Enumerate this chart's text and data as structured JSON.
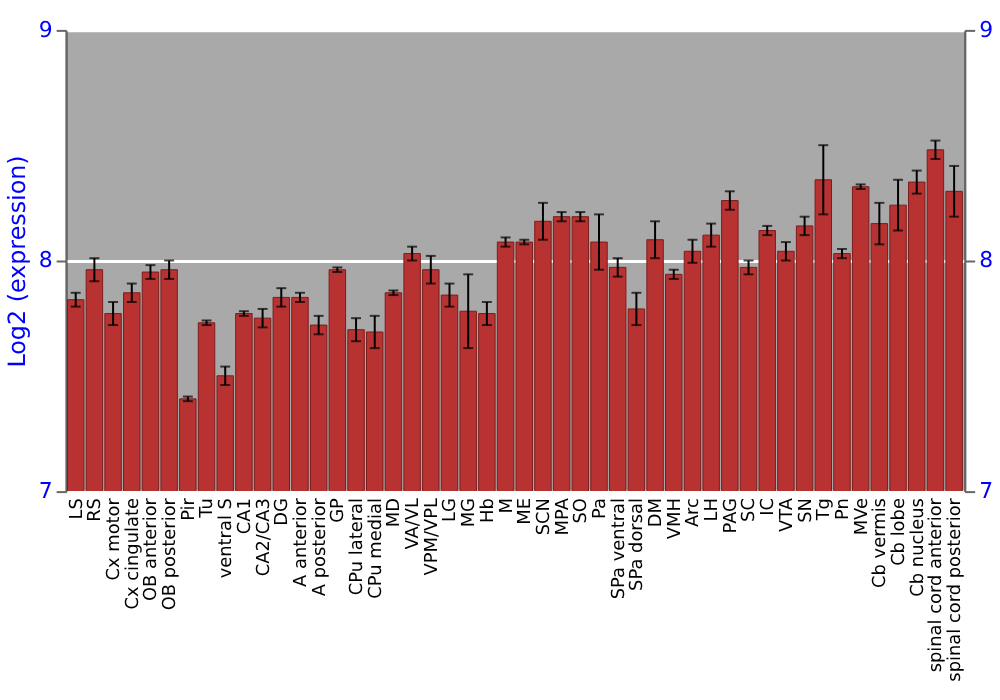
{
  "chart_data": {
    "type": "bar",
    "ylabel": "Log2 (expression)",
    "categories": [
      "LS",
      "RS",
      "Cx motor",
      "Cx cingulate",
      "OB anterior",
      "OB posterior",
      "Pir",
      "Tu",
      "ventral S",
      "CA1",
      "CA2/CA3",
      "DG",
      "A anterior",
      "A posterior",
      "GP",
      "CPu lateral",
      "CPu medial",
      "MD",
      "VA/VL",
      "VPM/VPL",
      "LG",
      "MG",
      "Hb",
      "M",
      "ME",
      "SCN",
      "MPA",
      "SO",
      "Pa",
      "SPa ventral",
      "SPa dorsal",
      "DM",
      "VMH",
      "Arc",
      "LH",
      "PAG",
      "SC",
      "IC",
      "VTA",
      "SN",
      "Tg",
      "Pn",
      "MVe",
      "Cb vermis",
      "Cb lobe",
      "Cb nucleus",
      "spinal cord anterior",
      "spinal cord posterior"
    ],
    "values": [
      7.83,
      7.96,
      7.77,
      7.86,
      7.95,
      7.96,
      7.4,
      7.73,
      7.5,
      7.77,
      7.75,
      7.84,
      7.84,
      7.72,
      7.96,
      7.7,
      7.69,
      7.86,
      8.03,
      7.96,
      7.85,
      7.78,
      7.77,
      8.08,
      8.08,
      8.17,
      8.19,
      8.19,
      8.08,
      7.97,
      7.79,
      8.09,
      7.94,
      8.04,
      8.11,
      8.26,
      7.97,
      8.13,
      8.04,
      8.15,
      8.35,
      8.03,
      8.32,
      8.16,
      8.24,
      8.34,
      8.48,
      8.3
    ],
    "errors": [
      0.03,
      0.05,
      0.05,
      0.04,
      0.03,
      0.04,
      0.01,
      0.01,
      0.04,
      0.01,
      0.04,
      0.04,
      0.02,
      0.04,
      0.01,
      0.05,
      0.07,
      0.01,
      0.03,
      0.06,
      0.05,
      0.16,
      0.05,
      0.02,
      0.01,
      0.08,
      0.02,
      0.02,
      0.12,
      0.04,
      0.07,
      0.08,
      0.02,
      0.05,
      0.05,
      0.04,
      0.03,
      0.02,
      0.04,
      0.04,
      0.15,
      0.02,
      0.01,
      0.09,
      0.11,
      0.05,
      0.04,
      0.11
    ],
    "color": "#b83232",
    "ylim": [
      7,
      9
    ],
    "yticks": [
      7,
      8,
      9
    ],
    "y2lim": [
      7,
      9
    ],
    "y2ticks": [
      7,
      8,
      9
    ],
    "grid": "y"
  }
}
